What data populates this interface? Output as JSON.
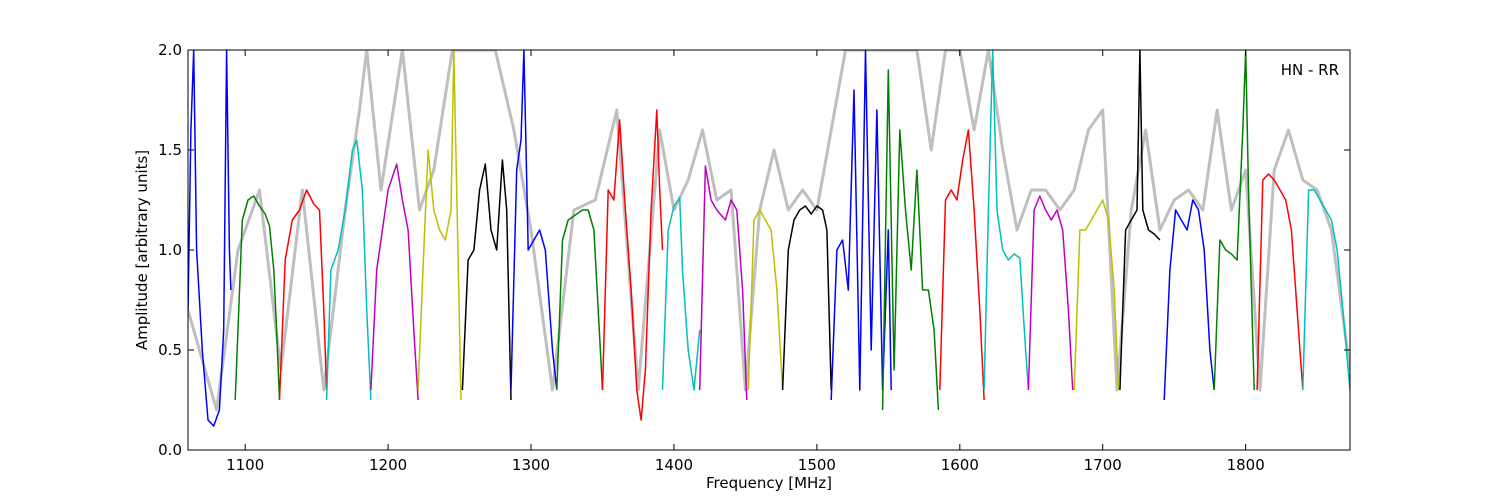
{
  "chart_data": {
    "type": "line",
    "title": "",
    "annotation": "HN - RR",
    "xlabel": "Frequency [MHz]",
    "ylabel": "Amplitude [arbitrary units]",
    "xlim": [
      1060,
      1873
    ],
    "ylim": [
      0.0,
      2.0
    ],
    "xticks": [
      1100,
      1200,
      1300,
      1400,
      1500,
      1600,
      1700,
      1800
    ],
    "yticks": [
      0.0,
      0.5,
      1.0,
      1.5,
      2.0
    ],
    "ytick_labels": [
      "0.0",
      "0.5",
      "1.0",
      "1.5",
      "2.0"
    ],
    "grid": false,
    "legend": "none",
    "background_series": {
      "color": "#bfbfbf",
      "description_of_role": "raw",
      "x": [
        1060,
        1080,
        1095,
        1110,
        1125,
        1140,
        1155,
        1170,
        1180,
        1185,
        1195,
        1210,
        1222,
        1232,
        1245,
        1260,
        1275,
        1288,
        1300,
        1315,
        1330,
        1345,
        1360,
        1375,
        1390,
        1400,
        1410,
        1420,
        1430,
        1440,
        1450,
        1460,
        1470,
        1480,
        1490,
        1500,
        1510,
        1520,
        1530,
        1540,
        1550,
        1560,
        1570,
        1580,
        1590,
        1600,
        1610,
        1620,
        1630,
        1640,
        1650,
        1660,
        1670,
        1680,
        1690,
        1700,
        1710,
        1720,
        1730,
        1740,
        1750,
        1760,
        1770,
        1780,
        1790,
        1800,
        1810,
        1820,
        1830,
        1840,
        1850,
        1860,
        1873
      ],
      "y": [
        0.7,
        0.2,
        1.0,
        1.3,
        0.4,
        1.3,
        0.3,
        1.2,
        1.7,
        2.0,
        1.3,
        2.0,
        1.2,
        1.4,
        2.0,
        2.0,
        2.0,
        1.6,
        1.1,
        0.3,
        1.2,
        1.25,
        1.7,
        0.3,
        1.6,
        1.2,
        1.35,
        1.6,
        1.25,
        1.3,
        0.3,
        1.2,
        1.5,
        1.2,
        1.3,
        1.2,
        1.6,
        2.0,
        2.0,
        2.0,
        2.0,
        2.0,
        2.0,
        1.5,
        2.0,
        2.0,
        1.6,
        2.0,
        1.5,
        1.1,
        1.3,
        1.3,
        1.2,
        1.3,
        1.6,
        1.7,
        0.3,
        1.2,
        1.6,
        1.1,
        1.25,
        1.3,
        1.2,
        1.7,
        1.2,
        1.4,
        0.3,
        1.4,
        1.6,
        1.35,
        1.3,
        1.1,
        0.4
      ]
    },
    "series": [
      {
        "color": "#0000ff",
        "x": [
          1060,
          1062,
          1064,
          1066,
          1070,
          1074,
          1078,
          1082,
          1085,
          1087,
          1089,
          1090
        ],
        "y": [
          0.7,
          1.6,
          2.0,
          1.0,
          0.5,
          0.15,
          0.12,
          0.2,
          0.6,
          2.0,
          1.0,
          0.8
        ]
      },
      {
        "color": "#008000",
        "x": [
          1093,
          1098,
          1102,
          1106,
          1110,
          1114,
          1117,
          1120,
          1122,
          1124
        ],
        "y": [
          0.25,
          1.15,
          1.25,
          1.27,
          1.22,
          1.18,
          1.12,
          0.9,
          0.6,
          0.25
        ]
      },
      {
        "color": "#ff0000",
        "x": [
          1124,
          1128,
          1133,
          1138,
          1143,
          1148,
          1152,
          1155,
          1157
        ],
        "y": [
          0.25,
          0.95,
          1.15,
          1.2,
          1.3,
          1.23,
          1.2,
          0.7,
          0.3
        ]
      },
      {
        "color": "#00bfbf",
        "x": [
          1157,
          1160,
          1165,
          1170,
          1175,
          1178,
          1182,
          1185,
          1188
        ],
        "y": [
          0.25,
          0.9,
          1.0,
          1.2,
          1.5,
          1.55,
          1.3,
          0.7,
          0.25
        ]
      },
      {
        "color": "#bf00bf",
        "x": [
          1188,
          1192,
          1196,
          1200,
          1206,
          1210,
          1214,
          1218,
          1221
        ],
        "y": [
          0.3,
          0.9,
          1.1,
          1.3,
          1.43,
          1.25,
          1.1,
          0.6,
          0.25
        ]
      },
      {
        "color": "#bfbf00",
        "x": [
          1221,
          1225,
          1228,
          1232,
          1236,
          1240,
          1244,
          1246,
          1248,
          1251
        ],
        "y": [
          0.3,
          1.0,
          1.5,
          1.2,
          1.1,
          1.05,
          1.2,
          2.0,
          1.3,
          0.25
        ]
      },
      {
        "color": "#000000",
        "x": [
          1252,
          1256,
          1260,
          1264,
          1268,
          1272,
          1276,
          1280,
          1283,
          1286
        ],
        "y": [
          0.3,
          0.95,
          1.0,
          1.3,
          1.43,
          1.1,
          1.0,
          1.45,
          1.2,
          0.25
        ]
      },
      {
        "color": "#0000ff",
        "x": [
          1286,
          1290,
          1293,
          1295,
          1298,
          1302,
          1306,
          1310,
          1315,
          1318
        ],
        "y": [
          0.3,
          1.4,
          1.55,
          2.0,
          1.0,
          1.05,
          1.1,
          1.0,
          0.5,
          0.3
        ]
      },
      {
        "color": "#008000",
        "x": [
          1318,
          1322,
          1326,
          1330,
          1336,
          1340,
          1344,
          1347,
          1350
        ],
        "y": [
          0.3,
          1.05,
          1.15,
          1.17,
          1.2,
          1.2,
          1.1,
          0.7,
          0.3
        ]
      },
      {
        "color": "#ff0000",
        "x": [
          1350,
          1354,
          1358,
          1362,
          1366,
          1370,
          1374,
          1377,
          1380,
          1384,
          1388,
          1390,
          1392
        ],
        "y": [
          0.3,
          1.3,
          1.25,
          1.65,
          1.2,
          0.8,
          0.3,
          0.15,
          0.4,
          1.2,
          1.7,
          1.3,
          1.0
        ]
      },
      {
        "color": "#00bfbf",
        "x": [
          1392,
          1396,
          1400,
          1404,
          1406,
          1410,
          1414,
          1418
        ],
        "y": [
          0.3,
          1.1,
          1.22,
          1.26,
          0.9,
          0.5,
          0.3,
          0.6
        ]
      },
      {
        "color": "#bf00bf",
        "x": [
          1418,
          1422,
          1426,
          1430,
          1436,
          1440,
          1444,
          1448,
          1451
        ],
        "y": [
          0.3,
          1.42,
          1.25,
          1.2,
          1.15,
          1.25,
          1.2,
          0.8,
          0.25
        ]
      },
      {
        "color": "#bfbf00",
        "x": [
          1452,
          1456,
          1460,
          1464,
          1468,
          1472,
          1476
        ],
        "y": [
          0.3,
          1.15,
          1.2,
          1.15,
          1.1,
          0.8,
          0.3
        ]
      },
      {
        "color": "#000000",
        "x": [
          1476,
          1480,
          1484,
          1488,
          1492,
          1496,
          1500,
          1504,
          1507,
          1510
        ],
        "y": [
          0.3,
          1.0,
          1.15,
          1.2,
          1.22,
          1.18,
          1.22,
          1.2,
          1.1,
          0.3
        ]
      },
      {
        "color": "#0000ff",
        "x": [
          1510,
          1514,
          1518,
          1522,
          1526,
          1530,
          1534,
          1538,
          1542,
          1546,
          1550,
          1552
        ],
        "y": [
          0.25,
          1.0,
          1.05,
          0.8,
          1.8,
          0.3,
          2.0,
          0.5,
          1.7,
          0.3,
          1.1,
          0.3
        ]
      },
      {
        "color": "#008000",
        "x": [
          1546,
          1550,
          1554,
          1558,
          1562,
          1566,
          1570,
          1574,
          1578,
          1582,
          1585
        ],
        "y": [
          0.2,
          1.9,
          0.4,
          1.6,
          1.2,
          0.9,
          1.4,
          0.8,
          0.8,
          0.6,
          0.2
        ]
      },
      {
        "color": "#ff0000",
        "x": [
          1586,
          1590,
          1594,
          1598,
          1602,
          1606,
          1610,
          1614,
          1617
        ],
        "y": [
          0.3,
          1.25,
          1.3,
          1.25,
          1.45,
          1.6,
          1.2,
          0.7,
          0.25
        ]
      },
      {
        "color": "#00bfbf",
        "x": [
          1617,
          1620,
          1623,
          1626,
          1630,
          1634,
          1638,
          1642,
          1646,
          1648
        ],
        "y": [
          0.3,
          1.2,
          2.0,
          1.2,
          1.0,
          0.95,
          0.98,
          0.96,
          0.5,
          0.3
        ]
      },
      {
        "color": "#bf00bf",
        "x": [
          1648,
          1652,
          1656,
          1660,
          1664,
          1668,
          1672,
          1676,
          1679
        ],
        "y": [
          0.3,
          1.2,
          1.27,
          1.2,
          1.15,
          1.2,
          1.1,
          0.7,
          0.3
        ]
      },
      {
        "color": "#bfbf00",
        "x": [
          1680,
          1684,
          1688,
          1692,
          1696,
          1700,
          1704,
          1708,
          1711
        ],
        "y": [
          0.3,
          1.1,
          1.1,
          1.15,
          1.2,
          1.25,
          1.15,
          0.8,
          0.3
        ]
      },
      {
        "color": "#000000",
        "x": [
          1712,
          1716,
          1720,
          1724,
          1726,
          1728,
          1732,
          1736,
          1740
        ],
        "y": [
          0.3,
          1.1,
          1.15,
          1.2,
          2.0,
          1.2,
          1.1,
          1.08,
          1.05
        ]
      },
      {
        "color": "#0000ff",
        "x": [
          1743,
          1747,
          1751,
          1755,
          1759,
          1763,
          1767,
          1771,
          1775,
          1778
        ],
        "y": [
          0.25,
          0.9,
          1.2,
          1.15,
          1.1,
          1.25,
          1.2,
          1.0,
          0.5,
          0.3
        ]
      },
      {
        "color": "#008000",
        "x": [
          1778,
          1782,
          1786,
          1790,
          1794,
          1798,
          1800,
          1802,
          1806
        ],
        "y": [
          0.3,
          1.05,
          1.0,
          0.98,
          0.95,
          1.6,
          2.0,
          1.3,
          0.3
        ]
      },
      {
        "color": "#ff0000",
        "x": [
          1808,
          1812,
          1816,
          1820,
          1824,
          1828,
          1832,
          1836,
          1840
        ],
        "y": [
          0.3,
          1.35,
          1.38,
          1.35,
          1.3,
          1.25,
          1.1,
          0.7,
          0.3
        ]
      },
      {
        "color": "#00bfbf",
        "x": [
          1840,
          1844,
          1848,
          1852,
          1856,
          1860,
          1864,
          1868,
          1873
        ],
        "y": [
          0.3,
          1.3,
          1.3,
          1.25,
          1.2,
          1.15,
          1.0,
          0.7,
          0.3
        ]
      }
    ]
  }
}
